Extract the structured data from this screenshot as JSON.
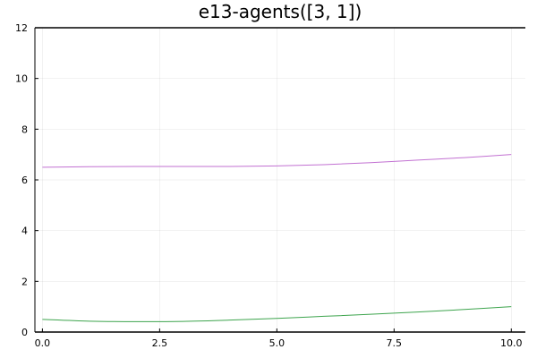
{
  "chart_data": {
    "type": "line",
    "title": "e13-agents([3, 1])",
    "xlabel": "",
    "ylabel": "",
    "xlim": [
      -0.16,
      10.3
    ],
    "ylim": [
      0,
      12
    ],
    "x_ticks": [
      0.0,
      2.5,
      5.0,
      7.5,
      10.0
    ],
    "x_tick_labels": [
      "0.0",
      "2.5",
      "5.0",
      "7.5",
      "10.0"
    ],
    "y_ticks": [
      0,
      2,
      4,
      6,
      8,
      10,
      12
    ],
    "y_tick_labels": [
      "0",
      "2",
      "4",
      "6",
      "8",
      "10",
      "12"
    ],
    "grid": true,
    "legend": "none",
    "series": [
      {
        "color": "#c271d2",
        "x": [
          0,
          1,
          2,
          3,
          4,
          5,
          6,
          7,
          8,
          9,
          10
        ],
        "y": [
          6.5,
          6.52,
          6.53,
          6.53,
          6.53,
          6.55,
          6.6,
          6.68,
          6.78,
          6.88,
          7.0
        ]
      },
      {
        "color": "#3da44d",
        "x": [
          0,
          1,
          2,
          3,
          4,
          5,
          6,
          7,
          8,
          9,
          10
        ],
        "y": [
          0.5,
          0.43,
          0.41,
          0.42,
          0.47,
          0.54,
          0.62,
          0.7,
          0.79,
          0.89,
          1.0
        ]
      }
    ]
  }
}
